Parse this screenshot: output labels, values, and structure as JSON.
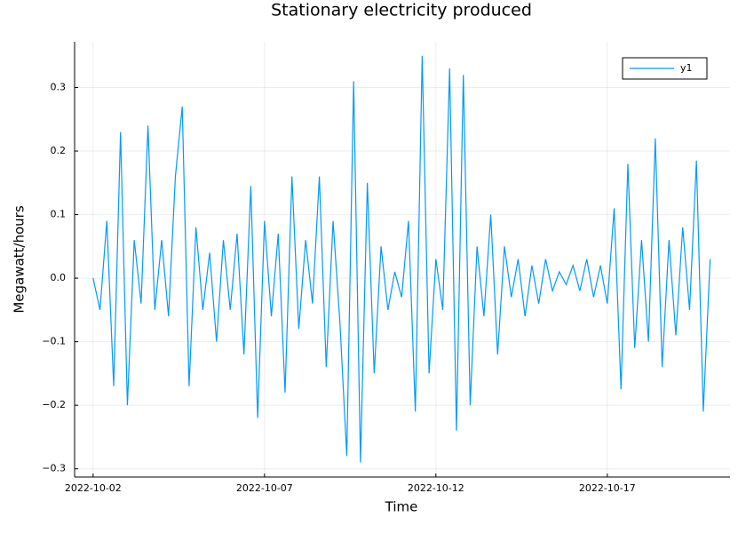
{
  "chart_data": {
    "type": "line",
    "title": "Stationary electricity produced",
    "x_label": "Time",
    "y_label": "Megawatt/hours",
    "x": [
      0,
      0.2,
      0.4,
      0.6,
      0.8,
      1,
      1.2,
      1.4,
      1.6,
      1.8,
      2,
      2.2,
      2.4,
      2.6,
      2.8,
      3,
      3.2,
      3.4,
      3.6,
      3.8,
      4,
      4.2,
      4.4,
      4.6,
      4.8,
      5,
      5.2,
      5.4,
      5.6,
      5.8,
      6,
      6.2,
      6.4,
      6.6,
      6.8,
      7,
      7.2,
      7.4,
      7.6,
      7.8,
      8,
      8.2,
      8.4,
      8.6,
      8.8,
      9,
      9.2,
      9.4,
      9.6,
      9.8,
      10,
      10.2,
      10.4,
      10.6,
      10.8,
      11,
      11.2,
      11.4,
      11.6,
      11.8,
      12,
      12.2,
      12.4,
      12.6,
      12.8,
      13,
      13.2,
      13.4,
      13.6,
      13.8,
      14,
      14.2,
      14.4,
      14.6,
      14.8,
      15,
      15.2,
      15.4,
      15.6,
      15.8,
      16,
      16.2,
      16.4,
      16.6,
      16.8,
      17,
      17.2,
      17.4,
      17.6,
      17.8,
      18
    ],
    "series": [
      {
        "name": "y1",
        "color": "#009af9",
        "values": [
          0,
          -0.05,
          0.09,
          -0.17,
          0.23,
          -0.2,
          0.06,
          -0.04,
          0.24,
          -0.05,
          0.06,
          -0.06,
          0.16,
          0.27,
          -0.17,
          0.08,
          -0.05,
          0.04,
          -0.1,
          0.06,
          -0.05,
          0.07,
          -0.12,
          0.145,
          -0.22,
          0.09,
          -0.06,
          0.07,
          -0.18,
          0.16,
          -0.08,
          0.06,
          -0.04,
          0.16,
          -0.14,
          0.09,
          -0.07,
          -0.28,
          0.31,
          -0.29,
          0.15,
          -0.15,
          0.05,
          -0.05,
          0.01,
          -0.03,
          0.09,
          -0.21,
          0.35,
          -0.15,
          0.03,
          -0.05,
          0.33,
          -0.24,
          0.32,
          -0.2,
          0.05,
          -0.06,
          0.1,
          -0.12,
          0.05,
          -0.03,
          0.03,
          -0.06,
          0.02,
          -0.04,
          0.03,
          -0.02,
          0.01,
          -0.01,
          0.02,
          -0.02,
          0.03,
          -0.03,
          0.02,
          -0.04,
          0.11,
          -0.175,
          0.18,
          -0.11,
          0.06,
          -0.1,
          0.22,
          -0.14,
          0.06,
          -0.09,
          0.08,
          -0.05,
          0.185,
          -0.21,
          0.03
        ]
      }
    ],
    "xlim": [
      -0.54,
      18.58
    ],
    "xticks": [
      {
        "value": 0,
        "label": "2022-10-02"
      },
      {
        "value": 5,
        "label": "2022-10-07"
      },
      {
        "value": 10,
        "label": "2022-10-12"
      },
      {
        "value": 15,
        "label": "2022-10-17"
      }
    ],
    "ylim": [
      -0.313,
      0.372
    ],
    "yticks": [
      {
        "value": -0.3,
        "label": "−0.3"
      },
      {
        "value": -0.2,
        "label": "−0.2"
      },
      {
        "value": -0.1,
        "label": "−0.1"
      },
      {
        "value": 0,
        "label": "0.0"
      },
      0.1,
      0.2,
      0.3
    ],
    "grid": true,
    "legend": "top-right"
  }
}
